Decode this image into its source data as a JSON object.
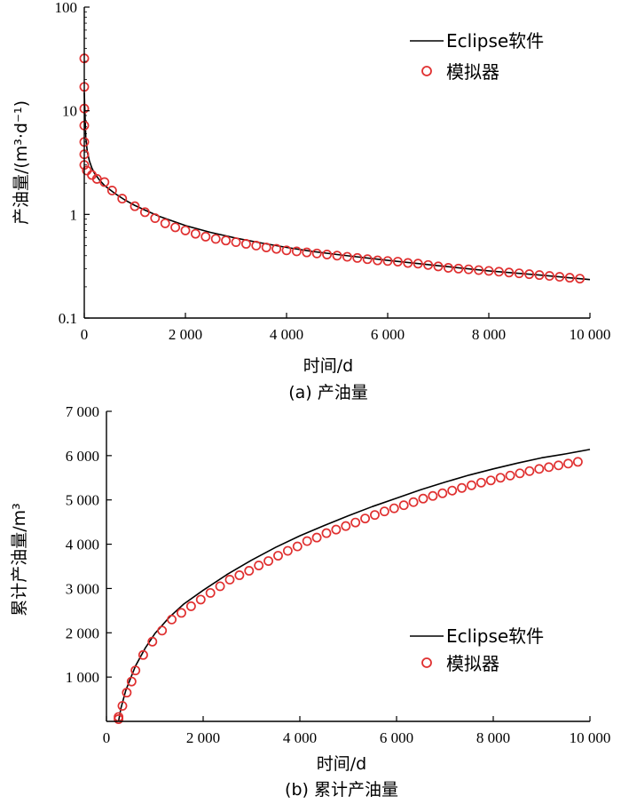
{
  "chart_data": [
    {
      "type": "line",
      "caption": "(a) 产油量",
      "xlabel": "时间/d",
      "ylabel": "产油量/(m³·d⁻¹)",
      "xlim": [
        0,
        10000
      ],
      "ylim": [
        0.1,
        100
      ],
      "yscale": "log",
      "x_ticks": [
        0,
        2000,
        4000,
        6000,
        8000,
        10000
      ],
      "x_tick_labels": [
        "0",
        "2 000",
        "4 000",
        "6 000",
        "8 000",
        "10 000"
      ],
      "y_ticks": [
        0.1,
        1,
        10,
        100
      ],
      "y_tick_labels": [
        "0.1",
        "1",
        "10",
        "100"
      ],
      "legend_position": "top-right",
      "grid": false,
      "series": [
        {
          "name": "Eclipse软件",
          "style": "line",
          "color": "#000000",
          "x": [
            0,
            30,
            60,
            100,
            150,
            200,
            300,
            400,
            600,
            800,
            1000,
            1200,
            1500,
            2000,
            2500,
            3000,
            3500,
            4000,
            4500,
            5000,
            6000,
            7000,
            8000,
            9000,
            10000
          ],
          "y": [
            15,
            5.5,
            4.0,
            3.3,
            2.8,
            2.5,
            2.15,
            1.9,
            1.6,
            1.38,
            1.22,
            1.1,
            0.95,
            0.78,
            0.67,
            0.59,
            0.53,
            0.48,
            0.44,
            0.41,
            0.36,
            0.32,
            0.285,
            0.26,
            0.235
          ]
        },
        {
          "name": "模拟器",
          "style": "marker",
          "color": "#e03030",
          "x": [
            0,
            0,
            0,
            0,
            0,
            0,
            0,
            50,
            150,
            250,
            400,
            550,
            750,
            1000,
            1200,
            1400,
            1600,
            1800,
            2000,
            2200,
            2400,
            2600,
            2800,
            3000,
            3200,
            3400,
            3600,
            3800,
            4000,
            4200,
            4400,
            4600,
            4800,
            5000,
            5200,
            5400,
            5600,
            5800,
            6000,
            6200,
            6400,
            6600,
            6800,
            7000,
            7200,
            7400,
            7600,
            7800,
            8000,
            8200,
            8400,
            8600,
            8800,
            9000,
            9200,
            9400,
            9600,
            9800
          ],
          "y": [
            32,
            17,
            10.5,
            7.2,
            5.0,
            3.8,
            3.0,
            2.65,
            2.4,
            2.2,
            2.05,
            1.7,
            1.42,
            1.2,
            1.05,
            0.92,
            0.82,
            0.75,
            0.7,
            0.65,
            0.61,
            0.58,
            0.56,
            0.54,
            0.52,
            0.5,
            0.48,
            0.465,
            0.45,
            0.44,
            0.43,
            0.42,
            0.41,
            0.4,
            0.39,
            0.38,
            0.37,
            0.36,
            0.355,
            0.35,
            0.34,
            0.335,
            0.325,
            0.315,
            0.305,
            0.3,
            0.295,
            0.29,
            0.285,
            0.28,
            0.275,
            0.27,
            0.265,
            0.26,
            0.255,
            0.25,
            0.245,
            0.24
          ]
        }
      ]
    },
    {
      "type": "line",
      "caption": "(b) 累计产油量",
      "xlabel": "时间/d",
      "ylabel": "累计产油量/m³",
      "xlim": [
        0,
        10000
      ],
      "ylim": [
        0,
        7000
      ],
      "x_ticks": [
        0,
        2000,
        4000,
        6000,
        8000,
        10000
      ],
      "x_tick_labels": [
        "0",
        "2 000",
        "4 000",
        "6 000",
        "8 000",
        "10 000"
      ],
      "y_ticks": [
        1000,
        2000,
        3000,
        4000,
        5000,
        6000,
        7000
      ],
      "y_tick_labels": [
        "1 000",
        "2 000",
        "3 000",
        "4 000",
        "5 000",
        "6 000",
        "7 000"
      ],
      "legend_position": "bottom-right",
      "grid": false,
      "series": [
        {
          "name": "Eclipse软件",
          "style": "line",
          "color": "#000000",
          "x": [
            250,
            300,
            400,
            600,
            800,
            1000,
            1300,
            1600,
            2000,
            2500,
            3000,
            3500,
            4000,
            4500,
            5000,
            5500,
            6000,
            6500,
            7000,
            7500,
            8000,
            8500,
            9000,
            9500,
            10000
          ],
          "y": [
            0,
            300,
            700,
            1250,
            1650,
            1980,
            2350,
            2650,
            2960,
            3320,
            3640,
            3930,
            4190,
            4420,
            4640,
            4850,
            5040,
            5230,
            5400,
            5560,
            5700,
            5830,
            5950,
            6040,
            6140
          ]
        },
        {
          "name": "模拟器",
          "style": "marker",
          "color": "#e03030",
          "x": [
            250,
            250,
            330,
            420,
            520,
            600,
            760,
            950,
            1150,
            1350,
            1550,
            1750,
            1950,
            2150,
            2350,
            2550,
            2750,
            2950,
            3150,
            3350,
            3550,
            3750,
            3950,
            4150,
            4350,
            4550,
            4750,
            4950,
            5150,
            5350,
            5550,
            5750,
            5950,
            6150,
            6350,
            6550,
            6750,
            6950,
            7150,
            7350,
            7550,
            7750,
            7950,
            8150,
            8350,
            8550,
            8750,
            8950,
            9150,
            9350,
            9550,
            9750
          ],
          "y": [
            50,
            100,
            350,
            650,
            900,
            1150,
            1500,
            1800,
            2050,
            2300,
            2450,
            2600,
            2750,
            2900,
            3050,
            3200,
            3300,
            3400,
            3520,
            3620,
            3740,
            3850,
            3950,
            4070,
            4150,
            4250,
            4330,
            4410,
            4490,
            4580,
            4660,
            4740,
            4810,
            4880,
            4950,
            5030,
            5090,
            5150,
            5210,
            5270,
            5330,
            5390,
            5440,
            5500,
            5550,
            5600,
            5650,
            5700,
            5740,
            5780,
            5820,
            5860
          ]
        }
      ]
    }
  ]
}
